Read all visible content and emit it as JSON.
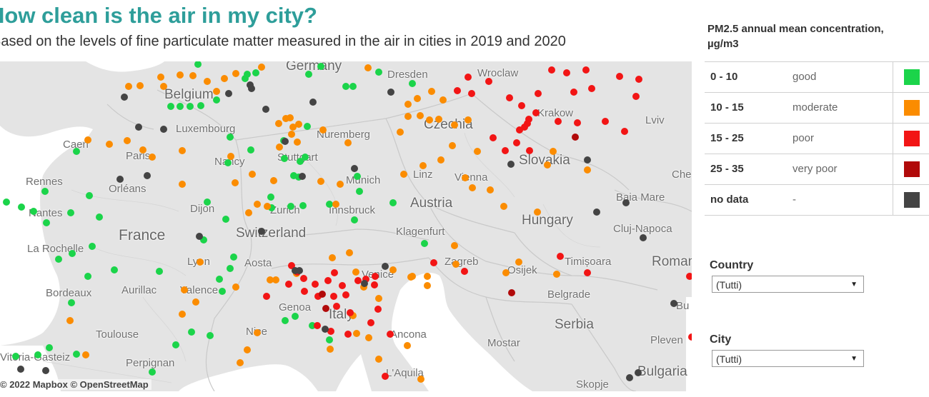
{
  "header": {
    "title": "How clean is the air in my city?",
    "subtitle": "Based on the levels of fine particulate matter measured in the air in cities in 2019 and 2020"
  },
  "map": {
    "attribution": "© 2022 Mapbox  © OpenStreetMap",
    "places": {
      "germany": "Germany",
      "dresden": "Dresden",
      "wroclaw": "Wroclaw",
      "belgium": "Belgium",
      "luxembourg": "Luxembourg",
      "nuremberg": "Nuremberg",
      "czechia": "Czechia",
      "krakow": "Krakow",
      "lviv": "Lviv",
      "caen": "Caen",
      "paris": "Paris",
      "nancy": "Nancy",
      "stuttgart": "Stuttgart",
      "slovakia": "Slovakia",
      "rennes": "Rennes",
      "orleans": "Orléans",
      "munich": "Munich",
      "linz": "Linz",
      "vienna": "Vienna",
      "baia_mare": "Baia Mare",
      "nantes": "Nantes",
      "dijon": "Dijon",
      "zurich": "Zurich",
      "innsbruck": "Innsbruck",
      "austria": "Austria",
      "hungary": "Hungary",
      "cluj_napoca": "Cluj-Napoca",
      "france": "France",
      "switzerland": "Switzerland",
      "klagenfurt": "Klagenfurt",
      "la_rochelle": "La Rochelle",
      "lyon": "Lyon",
      "aosta": "Aosta",
      "venice": "Venice",
      "zagreb": "Zagreb",
      "osijek": "Osijek",
      "timisoara": "Timișoara",
      "romania": "Romania",
      "bordeaux": "Bordeaux",
      "aurillac": "Aurillac",
      "valence": "Valence",
      "genoa": "Genoa",
      "italy": "Italy",
      "belgrade": "Belgrade",
      "serbia": "Serbia",
      "toulouse": "Toulouse",
      "nice": "Nice",
      "ancona": "Ancona",
      "mostar": "Mostar",
      "pleven": "Pleven",
      "vitoria": "Vitoria-Gasteiz",
      "perpignan": "Perpignan",
      "aquila": "L'Aquila",
      "bulgaria": "Bulgaria",
      "skopje": "Skopje",
      "che": "Che",
      "bu": "Bu"
    }
  },
  "legend": {
    "title": "PM2.5 annual mean concentration, µg/m3",
    "rows": [
      {
        "range": "0 - 10",
        "label": "good",
        "color": "#1bd44a"
      },
      {
        "range": "10 - 15",
        "label": "moderate",
        "color": "#fb8c00"
      },
      {
        "range": "15 - 25",
        "label": "poor",
        "color": "#f21515"
      },
      {
        "range": "25 - 35",
        "label": "very poor",
        "color": "#b10a0a"
      },
      {
        "range": "no data",
        "label": "-",
        "color": "#444444"
      }
    ]
  },
  "filters": {
    "country": {
      "label": "Country",
      "value": "(Tutti)"
    },
    "city": {
      "label": "City",
      "value": "(Tutti)"
    }
  }
}
